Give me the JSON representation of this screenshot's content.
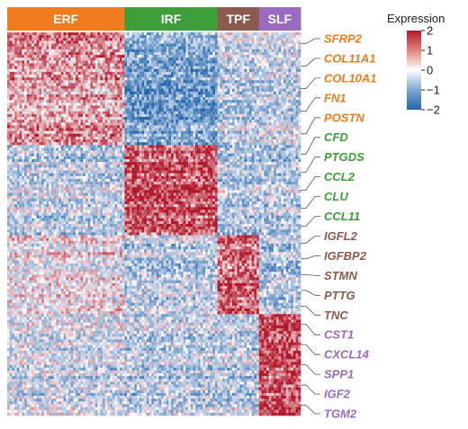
{
  "chart_data": {
    "type": "heatmap",
    "column_groups": [
      {
        "name": "ERF",
        "color": "#F07C1D",
        "columns": 48
      },
      {
        "name": "IRF",
        "color": "#3E9E3A",
        "columns": 38
      },
      {
        "name": "TPF",
        "color": "#8C5A4E",
        "columns": 17
      },
      {
        "name": "SLF",
        "color": "#9A6BBE",
        "columns": 17
      }
    ],
    "row_blocks": [
      {
        "group": "ERF",
        "rows": 40,
        "profile": {
          "ERF": 0.9,
          "IRF": -1.0,
          "TPF": -0.3,
          "SLF": -0.2
        }
      },
      {
        "group": "IRF",
        "rows": 32,
        "profile": {
          "ERF": -0.3,
          "IRF": 1.5,
          "TPF": -0.4,
          "SLF": -0.4
        }
      },
      {
        "group": "TPF",
        "rows": 28,
        "profile": {
          "ERF": 0.2,
          "IRF": -0.4,
          "TPF": 1.3,
          "SLF": -0.5
        }
      },
      {
        "group": "SLF",
        "rows": 36,
        "profile": {
          "ERF": -0.2,
          "IRF": -0.4,
          "TPF": -0.4,
          "SLF": 1.5
        }
      }
    ],
    "gene_labels": [
      {
        "gene": "SFRP2",
        "group": "ERF",
        "color": "#F07C1D"
      },
      {
        "gene": "COL11A1",
        "group": "ERF",
        "color": "#F07C1D"
      },
      {
        "gene": "COL10A1",
        "group": "ERF",
        "color": "#F07C1D"
      },
      {
        "gene": "FN1",
        "group": "ERF",
        "color": "#F07C1D"
      },
      {
        "gene": "POSTN",
        "group": "ERF",
        "color": "#F07C1D"
      },
      {
        "gene": "CFD",
        "group": "IRF",
        "color": "#3E9E3A"
      },
      {
        "gene": "PTGDS",
        "group": "IRF",
        "color": "#3E9E3A"
      },
      {
        "gene": "CCL2",
        "group": "IRF",
        "color": "#3E9E3A"
      },
      {
        "gene": "CLU",
        "group": "IRF",
        "color": "#3E9E3A"
      },
      {
        "gene": "CCL11",
        "group": "IRF",
        "color": "#3E9E3A"
      },
      {
        "gene": "IGFL2",
        "group": "TPF",
        "color": "#8C5A4E"
      },
      {
        "gene": "IGFBP2",
        "group": "TPF",
        "color": "#8C5A4E"
      },
      {
        "gene": "STMN",
        "group": "TPF",
        "color": "#8C5A4E"
      },
      {
        "gene": "PTTG",
        "group": "TPF",
        "color": "#8C5A4E"
      },
      {
        "gene": "TNC",
        "group": "TPF",
        "color": "#8C5A4E"
      },
      {
        "gene": "CST1",
        "group": "SLF",
        "color": "#9A6BBE"
      },
      {
        "gene": "CXCL14",
        "group": "SLF",
        "color": "#9A6BBE"
      },
      {
        "gene": "SPP1",
        "group": "SLF",
        "color": "#9A6BBE"
      },
      {
        "gene": "IGF2",
        "group": "SLF",
        "color": "#9A6BBE"
      },
      {
        "gene": "TGM2",
        "group": "SLF",
        "color": "#9A6BBE"
      }
    ],
    "legend": {
      "title": "Expression",
      "ticks": [
        "2",
        "1",
        "0",
        "−1",
        "−2"
      ],
      "values": [
        2,
        1,
        0,
        -1,
        -2
      ],
      "colors": {
        "high": "#B2182B",
        "mid": "#FFFFFF",
        "low": "#2166AC"
      },
      "placement": "top-right"
    }
  }
}
